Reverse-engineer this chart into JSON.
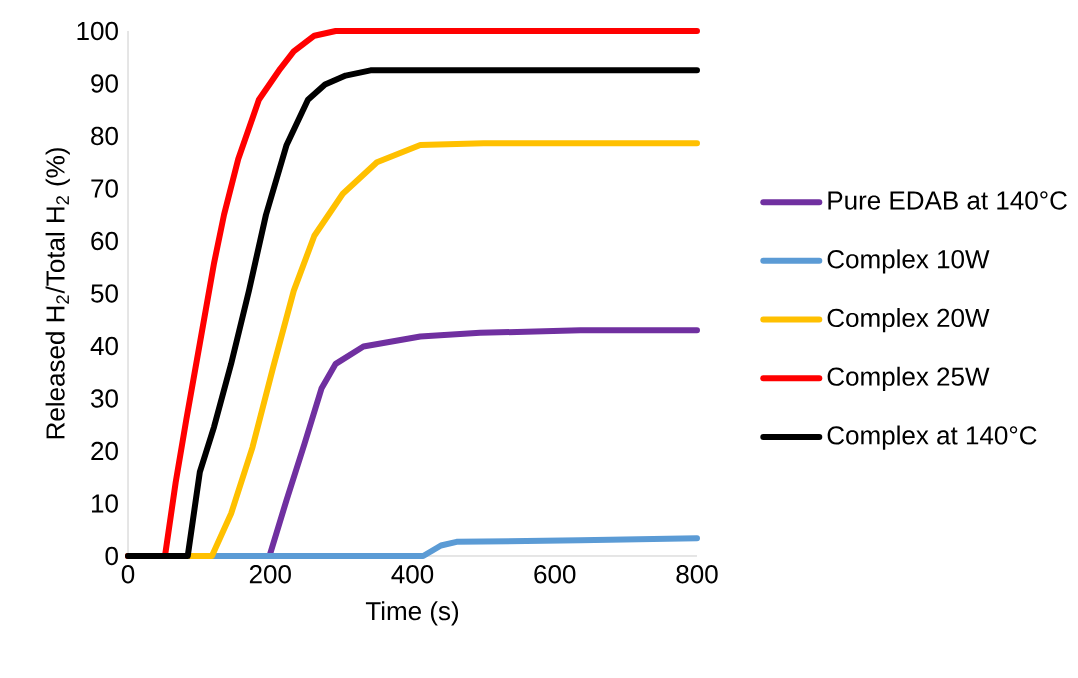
{
  "chart_data": {
    "type": "line",
    "xlabel": "Time (s)",
    "ylabel": "Released H$_{2}$/Total H$_{2}$ (%)",
    "xlim": [
      0,
      800
    ],
    "ylim": [
      0,
      100
    ],
    "xticks": [
      0,
      200,
      400,
      600,
      800
    ],
    "yticks": [
      0,
      10,
      20,
      30,
      40,
      50,
      60,
      70,
      80,
      90,
      100
    ],
    "legend": "right",
    "marker": "none",
    "line_style": "solid",
    "grid": false,
    "series": [
      {
        "name": "Pure EDAB at 140°C",
        "color": "#7030a0",
        "x": [
          0,
          199,
          223,
          248,
          272,
          292,
          331,
          411,
          495,
          636,
          800
        ],
        "values": [
          0,
          0,
          10.7,
          21.3,
          31.9,
          36.6,
          39.9,
          41.8,
          42.5,
          43,
          43
        ]
      },
      {
        "name": "Complex 10W",
        "color": "#5b9bd5",
        "x": [
          0,
          415,
          440,
          462,
          636,
          800
        ],
        "values": [
          0,
          0,
          2,
          2.7,
          3,
          3.4
        ]
      },
      {
        "name": "Complex 20W",
        "color": "#ffc000",
        "x": [
          0,
          118,
          145,
          175,
          204,
          233,
          262,
          302,
          350,
          411,
          500,
          800
        ],
        "values": [
          0,
          0,
          8.1,
          20.7,
          35.9,
          50.5,
          61,
          69,
          75,
          78.3,
          78.6,
          78.6
        ]
      },
      {
        "name": "Complex 25W",
        "color": "#ff0000",
        "x": [
          0,
          52,
          67,
          82,
          101,
          121,
          135,
          155,
          184,
          214,
          233,
          262,
          292,
          800
        ],
        "values": [
          0,
          0,
          14,
          26,
          40.5,
          55.8,
          65,
          75.6,
          86.9,
          92.8,
          96.1,
          99.1,
          100,
          100
        ]
      },
      {
        "name": "Complex at 140°C",
        "color": "#000000",
        "x": [
          0,
          84,
          101,
          121,
          145,
          170,
          194,
          223,
          253,
          277,
          306,
          341,
          800
        ],
        "values": [
          0,
          0,
          16,
          24.6,
          36.6,
          50.5,
          65,
          78.3,
          86.9,
          89.8,
          91.5,
          92.5,
          92.5
        ]
      }
    ]
  }
}
